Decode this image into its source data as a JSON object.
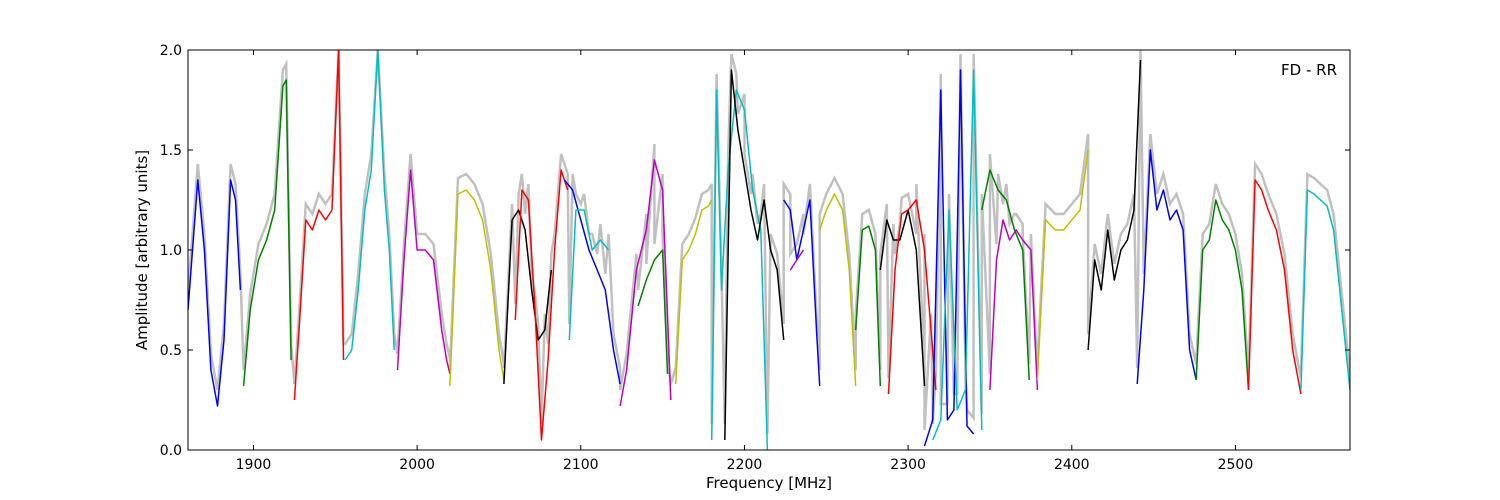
{
  "chart_data": {
    "type": "line",
    "title": "",
    "annotation": "FD - RR",
    "xlabel": "Frequency [MHz]",
    "ylabel": "Amplitude [arbitrary units]",
    "xlim": [
      1860,
      2570
    ],
    "ylim": [
      0.0,
      2.0
    ],
    "x_ticks": [
      1900,
      2000,
      2100,
      2200,
      2300,
      2400,
      2500
    ],
    "y_ticks": [
      0.0,
      0.5,
      1.0,
      1.5,
      2.0
    ],
    "y_tick_labels": [
      "0.0",
      "0.5",
      "1.0",
      "1.5",
      "2.0"
    ],
    "grid": false,
    "background_color": "#c0c0c0",
    "series": [
      {
        "color": "#0000ff",
        "x": [
          1860,
          1866,
          1870,
          1874,
          1878,
          1882,
          1886,
          1889,
          1892
        ],
        "y": [
          0.7,
          1.35,
          1.0,
          0.4,
          0.22,
          0.55,
          1.35,
          1.25,
          0.8
        ]
      },
      {
        "color": "#008000",
        "x": [
          1894,
          1898,
          1903,
          1908,
          1913,
          1918,
          1920,
          1923
        ],
        "y": [
          0.32,
          0.7,
          0.95,
          1.05,
          1.2,
          1.82,
          1.85,
          0.45
        ]
      },
      {
        "color": "#ff0000",
        "x": [
          1925,
          1928,
          1932,
          1936,
          1940,
          1944,
          1948,
          1952,
          1955
        ],
        "y": [
          0.25,
          0.62,
          1.15,
          1.1,
          1.2,
          1.15,
          1.2,
          2.0,
          0.45
        ]
      },
      {
        "color": "#00bfbf",
        "x": [
          1956,
          1960,
          1964,
          1968,
          1972,
          1976,
          1980,
          1983,
          1986
        ],
        "y": [
          0.45,
          0.5,
          0.8,
          1.2,
          1.4,
          2.0,
          1.3,
          1.0,
          0.5
        ]
      },
      {
        "color": "#bf00bf",
        "x": [
          1988,
          1992,
          1996,
          2000,
          2005,
          2010,
          2015,
          2018,
          2020
        ],
        "y": [
          0.4,
          0.95,
          1.4,
          1.0,
          1.0,
          0.95,
          0.6,
          0.45,
          0.38
        ]
      },
      {
        "color": "#bfbf00",
        "x": [
          2020,
          2025,
          2030,
          2035,
          2040,
          2045,
          2050,
          2053
        ],
        "y": [
          0.32,
          1.28,
          1.3,
          1.25,
          1.15,
          0.9,
          0.5,
          0.35
        ]
      },
      {
        "color": "#000000",
        "x": [
          2053,
          2058,
          2062,
          2066,
          2070,
          2074,
          2078,
          2082
        ],
        "y": [
          0.33,
          1.15,
          1.2,
          1.1,
          0.8,
          0.55,
          0.6,
          0.9
        ]
      },
      {
        "color": "#ff0000",
        "x": [
          2060,
          2064,
          2068,
          2072,
          2076,
          2080,
          2084,
          2088,
          2092
        ],
        "y": [
          0.65,
          1.3,
          1.25,
          0.7,
          0.05,
          0.45,
          1.0,
          1.4,
          1.3
        ]
      },
      {
        "color": "#0000ff",
        "x": [
          2090,
          2095,
          2100,
          2105,
          2110,
          2115,
          2120,
          2124
        ],
        "y": [
          1.35,
          1.3,
          1.15,
          1.0,
          0.9,
          0.8,
          0.5,
          0.33
        ]
      },
      {
        "color": "#00bfbf",
        "x": [
          2093,
          2097,
          2102,
          2107,
          2112,
          2117
        ],
        "y": [
          0.55,
          1.2,
          1.2,
          1.0,
          1.05,
          1.0
        ]
      },
      {
        "color": "#bf00bf",
        "x": [
          2124,
          2128,
          2134,
          2140,
          2145,
          2150,
          2155
        ],
        "y": [
          0.22,
          0.4,
          0.9,
          1.1,
          1.45,
          1.3,
          0.25
        ]
      },
      {
        "color": "#008000",
        "x": [
          2135,
          2140,
          2145,
          2150,
          2153
        ],
        "y": [
          0.72,
          0.85,
          0.95,
          1.0,
          0.38
        ]
      },
      {
        "color": "#bfbf00",
        "x": [
          2158,
          2162,
          2166,
          2170,
          2174,
          2178,
          2180
        ],
        "y": [
          0.33,
          0.95,
          1.0,
          1.08,
          1.2,
          1.22,
          1.25
        ]
      },
      {
        "color": "#00bfbf",
        "x": [
          2180,
          2183,
          2186,
          2190,
          2195,
          2200,
          2205,
          2210,
          2214
        ],
        "y": [
          0.05,
          1.8,
          0.8,
          1.4,
          1.8,
          1.7,
          1.3,
          1.1,
          0.0
        ]
      },
      {
        "color": "#000000",
        "x": [
          2188,
          2192,
          2196,
          2200,
          2204,
          2208,
          2212,
          2216,
          2220,
          2224
        ],
        "y": [
          0.05,
          1.9,
          1.6,
          1.4,
          1.2,
          1.05,
          1.25,
          1.0,
          0.9,
          0.55
        ]
      },
      {
        "color": "#0000ff",
        "x": [
          2224,
          2228,
          2232,
          2236,
          2240,
          2244,
          2246
        ],
        "y": [
          1.25,
          1.2,
          0.95,
          1.1,
          1.25,
          0.6,
          0.32
        ]
      },
      {
        "color": "#bf00bf",
        "x": [
          2228,
          2232,
          2236
        ],
        "y": [
          0.9,
          0.95,
          1.0
        ]
      },
      {
        "color": "#bfbf00",
        "x": [
          2246,
          2250,
          2255,
          2260,
          2264,
          2268
        ],
        "y": [
          1.1,
          1.2,
          1.28,
          1.2,
          0.9,
          0.32
        ]
      },
      {
        "color": "#008000",
        "x": [
          2268,
          2272,
          2276,
          2280,
          2283
        ],
        "y": [
          0.6,
          1.1,
          1.12,
          1.0,
          0.32
        ]
      },
      {
        "color": "#000000",
        "x": [
          2283,
          2287,
          2291,
          2295,
          2300,
          2305,
          2310
        ],
        "y": [
          0.9,
          1.15,
          1.05,
          1.05,
          1.2,
          1.0,
          0.32
        ]
      },
      {
        "color": "#ff0000",
        "x": [
          2288,
          2292,
          2296,
          2300,
          2305,
          2310,
          2314,
          2317
        ],
        "y": [
          0.28,
          0.9,
          1.18,
          1.2,
          1.25,
          1.0,
          0.6,
          0.3
        ]
      },
      {
        "color": "#0000ff",
        "x": [
          2310,
          2315,
          2320,
          2324,
          2328,
          2332,
          2336,
          2340
        ],
        "y": [
          0.02,
          0.15,
          1.8,
          0.15,
          0.2,
          1.9,
          0.12,
          0.08
        ]
      },
      {
        "color": "#00bfbf",
        "x": [
          2315,
          2320,
          2325,
          2330,
          2335,
          2340,
          2345
        ],
        "y": [
          0.05,
          0.15,
          1.2,
          0.2,
          0.3,
          1.9,
          0.1
        ]
      },
      {
        "color": "#bf00bf",
        "x": [
          2350,
          2354,
          2358,
          2362,
          2366,
          2370,
          2375,
          2379
        ],
        "y": [
          0.3,
          0.95,
          1.15,
          1.05,
          1.1,
          1.05,
          1.0,
          0.3
        ]
      },
      {
        "color": "#008000",
        "x": [
          2345,
          2350,
          2355,
          2360,
          2365,
          2370,
          2374
        ],
        "y": [
          1.2,
          1.4,
          1.3,
          1.25,
          1.1,
          1.0,
          0.35
        ]
      },
      {
        "color": "#bfbf00",
        "x": [
          2379,
          2384,
          2390,
          2395,
          2400,
          2405,
          2410
        ],
        "y": [
          0.35,
          1.15,
          1.1,
          1.1,
          1.15,
          1.2,
          1.5
        ]
      },
      {
        "color": "#000000",
        "x": [
          2410,
          2414,
          2418,
          2422,
          2426,
          2430,
          2434,
          2438,
          2442
        ],
        "y": [
          0.5,
          0.95,
          0.8,
          1.1,
          0.85,
          1.0,
          1.05,
          1.2,
          1.95
        ]
      },
      {
        "color": "#0000ff",
        "x": [
          2440,
          2444,
          2448,
          2452,
          2456,
          2460,
          2464,
          2468,
          2472,
          2476
        ],
        "y": [
          0.33,
          0.8,
          1.5,
          1.2,
          1.3,
          1.15,
          1.2,
          1.1,
          0.5,
          0.35
        ]
      },
      {
        "color": "#008000",
        "x": [
          2476,
          2480,
          2484,
          2488,
          2492,
          2496,
          2500,
          2504,
          2508
        ],
        "y": [
          0.35,
          1.0,
          1.05,
          1.25,
          1.15,
          1.1,
          1.0,
          0.8,
          0.3
        ]
      },
      {
        "color": "#ff0000",
        "x": [
          2508,
          2512,
          2516,
          2520,
          2525,
          2530,
          2535,
          2540
        ],
        "y": [
          0.3,
          1.35,
          1.3,
          1.2,
          1.1,
          0.9,
          0.5,
          0.28
        ]
      },
      {
        "color": "#00bfbf",
        "x": [
          2540,
          2544,
          2548,
          2552,
          2556,
          2560,
          2565,
          2570
        ],
        "y": [
          0.3,
          1.3,
          1.28,
          1.25,
          1.22,
          1.1,
          0.7,
          0.3
        ]
      }
    ]
  }
}
